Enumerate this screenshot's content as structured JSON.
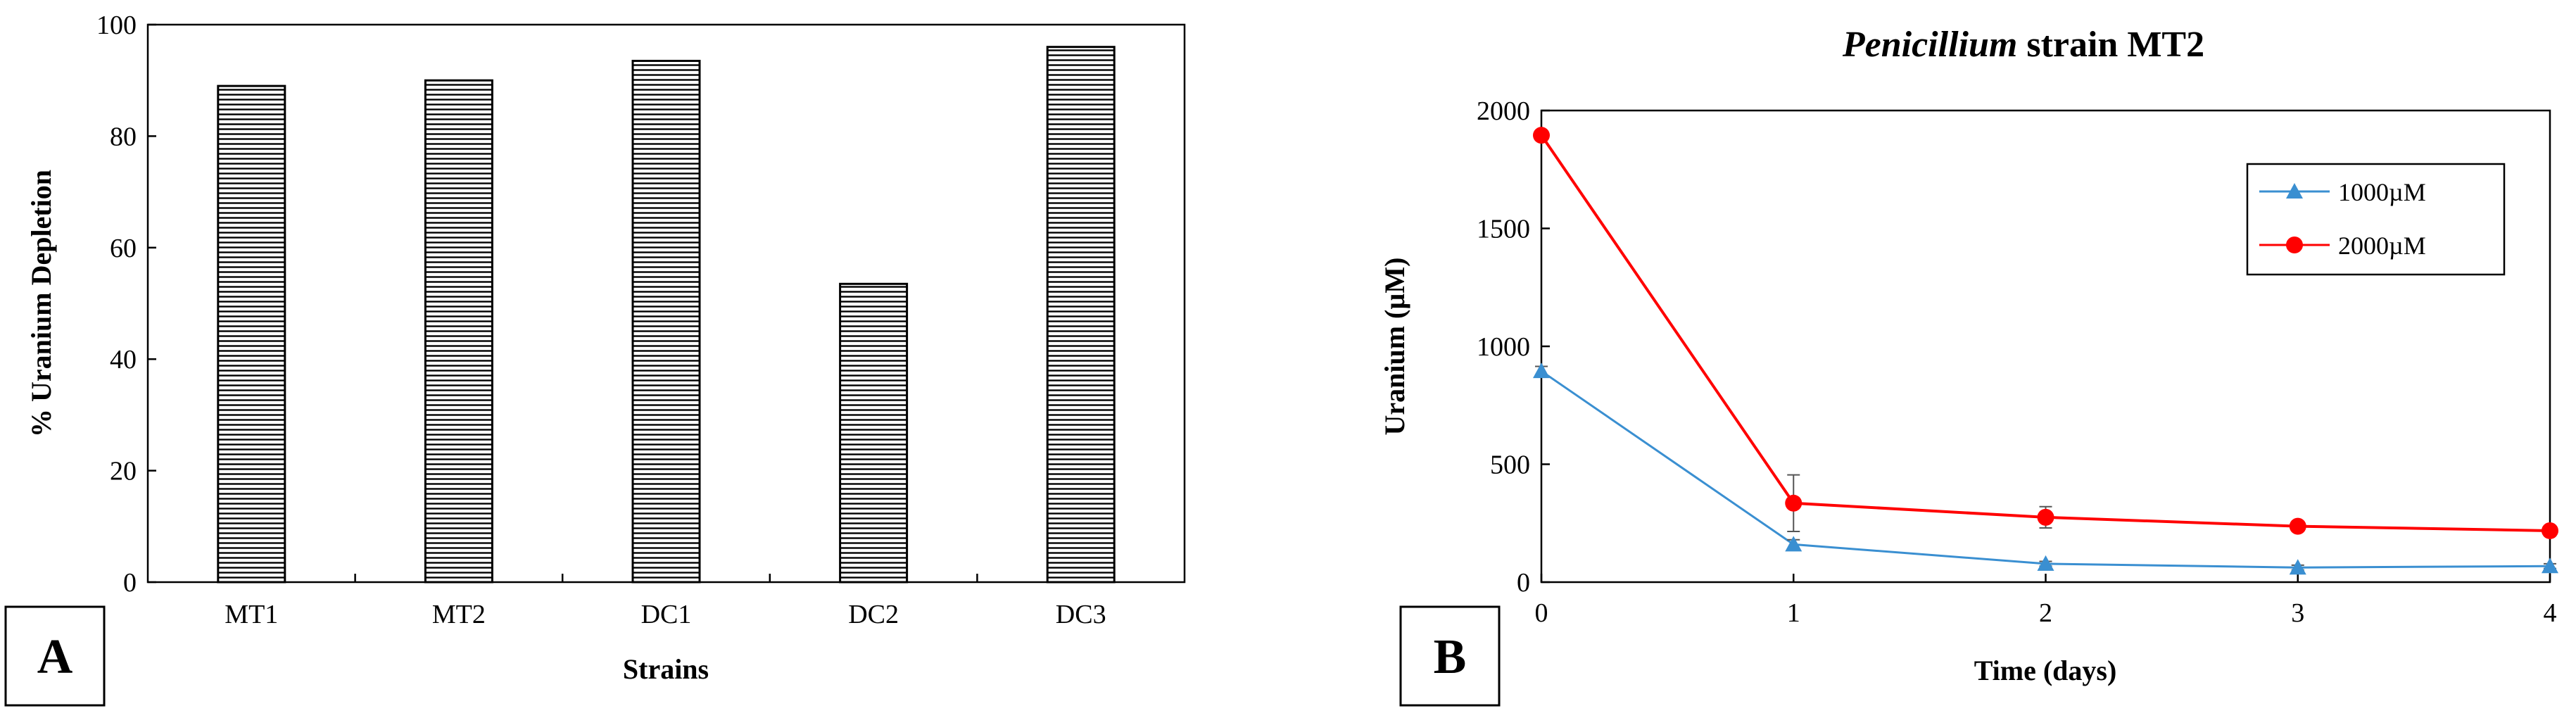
{
  "chart_data": [
    {
      "panel": "A",
      "type": "bar",
      "categories": [
        "MT1",
        "MT2",
        "DC1",
        "DC2",
        "DC3"
      ],
      "values": [
        89,
        90,
        93.5,
        53.5,
        96
      ],
      "title": "",
      "xlabel": "Strains",
      "ylabel": "% Uranium Depletion",
      "ylim": [
        0,
        100
      ],
      "yticks": [
        "0",
        "20",
        "40",
        "60",
        "80",
        "100"
      ],
      "grid": false,
      "bar_fill": "horizontal-hatch"
    },
    {
      "panel": "B",
      "type": "line",
      "title_italic": "Penicillium",
      "title_rest": " strain MT2",
      "xlabel": "Time (days)",
      "ylabel": "Uranium (µM)",
      "x": [
        0,
        1,
        2,
        3,
        4
      ],
      "xlim": [
        0,
        4
      ],
      "ylim": [
        0,
        2000
      ],
      "xticks": [
        "0",
        "1",
        "2",
        "3",
        "4"
      ],
      "yticks": [
        "0",
        "500",
        "1000",
        "1500",
        "2000"
      ],
      "grid": false,
      "legend_position": "top-right",
      "series": [
        {
          "name": "1000µM",
          "values": [
            895,
            160,
            78,
            62,
            68
          ],
          "errors": [
            20,
            20,
            10,
            10,
            10
          ],
          "color": "#3a8fd1",
          "marker": "triangle"
        },
        {
          "name": "2000µM",
          "values": [
            1895,
            335,
            275,
            237,
            218
          ],
          "errors": [
            10,
            120,
            45,
            20,
            15
          ],
          "color": "#ff0000",
          "marker": "circle"
        }
      ]
    }
  ]
}
